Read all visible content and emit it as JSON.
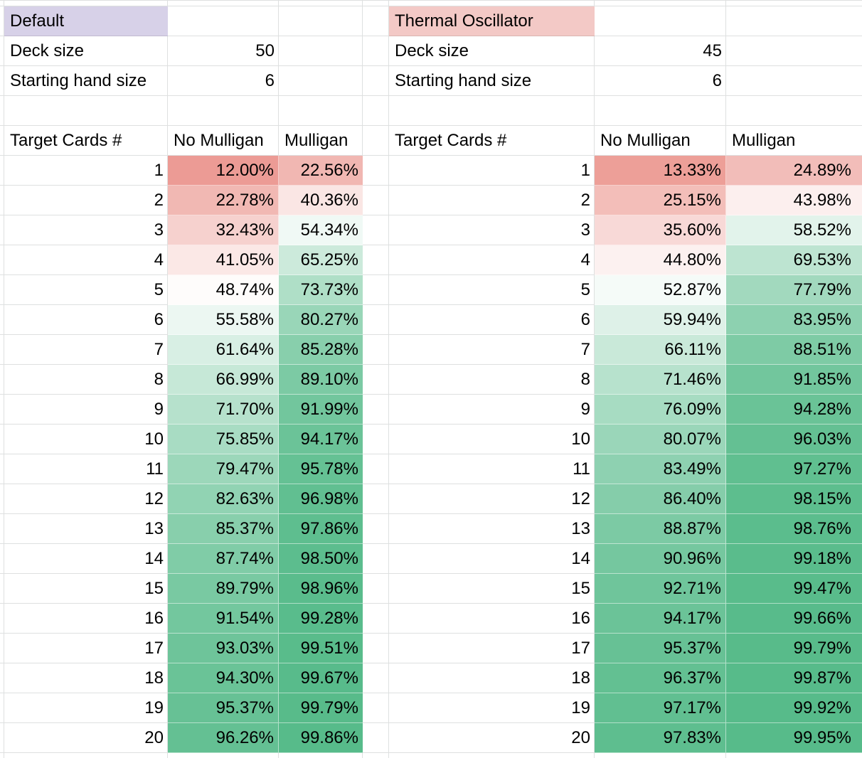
{
  "sheet": {
    "gridline_color": "#DEE0E0",
    "color_scale": {
      "min_value": 0,
      "min_color": "#E67C73",
      "mid_value": 50,
      "mid_color": "#FFFFFF",
      "max_value": 100,
      "max_color": "#57BB8A"
    }
  },
  "tables": [
    {
      "title": "Default",
      "title_bg": "#D7D1E8",
      "params": [
        {
          "label": "Deck size",
          "value": "50"
        },
        {
          "label": "Starting hand size",
          "value": "6"
        }
      ],
      "columns": [
        "Target Cards #",
        "No Mulligan",
        "Mulligan"
      ],
      "rows": [
        [
          1,
          "12.00%",
          "22.56%"
        ],
        [
          2,
          "22.78%",
          "40.36%"
        ],
        [
          3,
          "32.43%",
          "54.34%"
        ],
        [
          4,
          "41.05%",
          "65.25%"
        ],
        [
          5,
          "48.74%",
          "73.73%"
        ],
        [
          6,
          "55.58%",
          "80.27%"
        ],
        [
          7,
          "61.64%",
          "85.28%"
        ],
        [
          8,
          "66.99%",
          "89.10%"
        ],
        [
          9,
          "71.70%",
          "91.99%"
        ],
        [
          10,
          "75.85%",
          "94.17%"
        ],
        [
          11,
          "79.47%",
          "95.78%"
        ],
        [
          12,
          "82.63%",
          "96.98%"
        ],
        [
          13,
          "85.37%",
          "97.86%"
        ],
        [
          14,
          "87.74%",
          "98.50%"
        ],
        [
          15,
          "89.79%",
          "98.96%"
        ],
        [
          16,
          "91.54%",
          "99.28%"
        ],
        [
          17,
          "93.03%",
          "99.51%"
        ],
        [
          18,
          "94.30%",
          "99.67%"
        ],
        [
          19,
          "95.37%",
          "99.79%"
        ],
        [
          20,
          "96.26%",
          "99.86%"
        ]
      ]
    },
    {
      "title": "Thermal Oscillator",
      "title_bg": "#F3C9C6",
      "params": [
        {
          "label": "Deck size",
          "value": "45"
        },
        {
          "label": "Starting hand size",
          "value": "6"
        }
      ],
      "columns": [
        "Target Cards #",
        "No Mulligan",
        "Mulligan"
      ],
      "rows": [
        [
          1,
          "13.33%",
          "24.89%"
        ],
        [
          2,
          "25.15%",
          "43.98%"
        ],
        [
          3,
          "35.60%",
          "58.52%"
        ],
        [
          4,
          "44.80%",
          "69.53%"
        ],
        [
          5,
          "52.87%",
          "77.79%"
        ],
        [
          6,
          "59.94%",
          "83.95%"
        ],
        [
          7,
          "66.11%",
          "88.51%"
        ],
        [
          8,
          "71.46%",
          "91.85%"
        ],
        [
          9,
          "76.09%",
          "94.28%"
        ],
        [
          10,
          "80.07%",
          "96.03%"
        ],
        [
          11,
          "83.49%",
          "97.27%"
        ],
        [
          12,
          "86.40%",
          "98.15%"
        ],
        [
          13,
          "88.87%",
          "98.76%"
        ],
        [
          14,
          "90.96%",
          "99.18%"
        ],
        [
          15,
          "92.71%",
          "99.47%"
        ],
        [
          16,
          "94.17%",
          "99.66%"
        ],
        [
          17,
          "95.37%",
          "99.79%"
        ],
        [
          18,
          "96.37%",
          "99.87%"
        ],
        [
          19,
          "97.17%",
          "99.92%"
        ],
        [
          20,
          "97.83%",
          "99.95%"
        ]
      ]
    }
  ]
}
